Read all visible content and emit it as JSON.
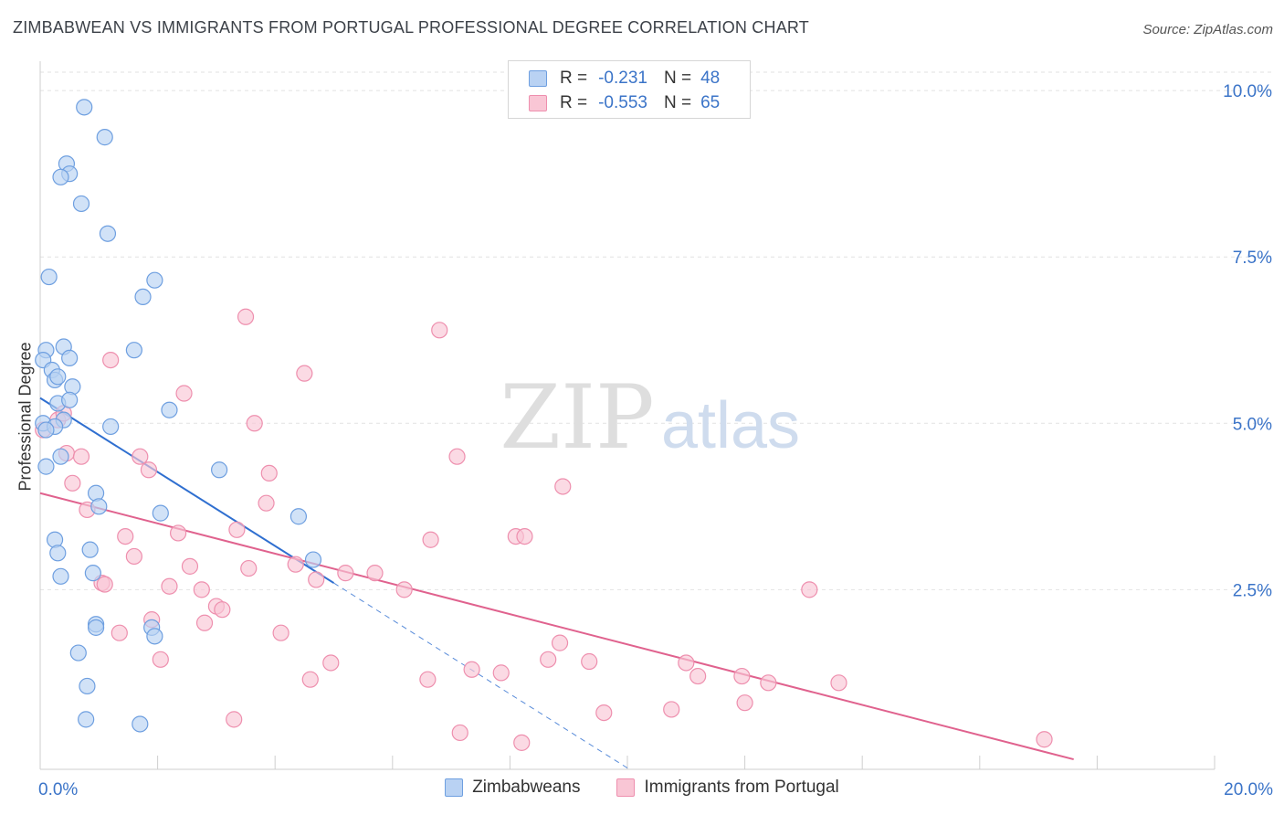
{
  "title": "ZIMBABWEAN VS IMMIGRANTS FROM PORTUGAL PROFESSIONAL DEGREE CORRELATION CHART",
  "source": "Source: ZipAtlas.com",
  "watermark": {
    "zip": "ZIP",
    "atlas": "atlas"
  },
  "legend": {
    "rows": [
      {
        "r_label": "R =",
        "r_value": "-0.231",
        "n_label": "N =",
        "n_value": "48",
        "fill": "#b9d2f3",
        "stroke": "#6e9fe0"
      },
      {
        "r_label": "R =",
        "r_value": "-0.553",
        "n_label": "N =",
        "n_value": "65",
        "fill": "#f9c6d5",
        "stroke": "#ee8fae"
      }
    ]
  },
  "bottom_legend": [
    {
      "label": "Zimbabweans",
      "fill": "#b9d2f3",
      "stroke": "#6e9fe0"
    },
    {
      "label": "Immigrants from Portugal",
      "fill": "#f9c6d5",
      "stroke": "#ee8fae"
    }
  ],
  "chart_data": {
    "type": "scatter",
    "title": "ZIMBABWEAN VS IMMIGRANTS FROM PORTUGAL PROFESSIONAL DEGREE CORRELATION CHART",
    "xlabel": "",
    "ylabel": "Professional Degree",
    "xlim": [
      0,
      20
    ],
    "ylim": [
      -0.2,
      10.4
    ],
    "x_tick_labels": [
      {
        "value": 0,
        "label": "0.0%"
      },
      {
        "value": 20,
        "label": "20.0%"
      }
    ],
    "y_tick_labels": [
      {
        "value": 2.5,
        "label": "2.5%"
      },
      {
        "value": 5.0,
        "label": "5.0%"
      },
      {
        "value": 7.5,
        "label": "7.5%"
      },
      {
        "value": 10.0,
        "label": "10.0%"
      }
    ],
    "x_minor_ticks": [
      0,
      2,
      4,
      6,
      8,
      10,
      12,
      14,
      16,
      18,
      20
    ],
    "grid": true,
    "series": [
      {
        "name": "Zimbabweans",
        "color": "#6e9fe0",
        "fill": "#b9d2f3",
        "trend_line_color": "#2f6fd0",
        "trend": {
          "x0": 0,
          "y0": 5.38,
          "x1": 5.0,
          "y1": 2.6,
          "dash_x_end": 10.0
        },
        "points": [
          {
            "x": 0.75,
            "y": 9.75
          },
          {
            "x": 1.1,
            "y": 9.3
          },
          {
            "x": 0.45,
            "y": 8.9
          },
          {
            "x": 0.5,
            "y": 8.75
          },
          {
            "x": 0.35,
            "y": 8.7
          },
          {
            "x": 0.7,
            "y": 8.3
          },
          {
            "x": 1.15,
            "y": 7.85
          },
          {
            "x": 0.15,
            "y": 7.2
          },
          {
            "x": 1.95,
            "y": 7.15
          },
          {
            "x": 1.75,
            "y": 6.9
          },
          {
            "x": 0.1,
            "y": 6.1
          },
          {
            "x": 0.4,
            "y": 6.15
          },
          {
            "x": 1.6,
            "y": 6.1
          },
          {
            "x": 0.05,
            "y": 5.95
          },
          {
            "x": 0.5,
            "y": 5.98
          },
          {
            "x": 0.2,
            "y": 5.8
          },
          {
            "x": 0.25,
            "y": 5.65
          },
          {
            "x": 0.3,
            "y": 5.7
          },
          {
            "x": 0.55,
            "y": 5.55
          },
          {
            "x": 0.3,
            "y": 5.3
          },
          {
            "x": 0.5,
            "y": 5.35
          },
          {
            "x": 2.2,
            "y": 5.2
          },
          {
            "x": 0.4,
            "y": 5.05
          },
          {
            "x": 0.05,
            "y": 5.0
          },
          {
            "x": 0.25,
            "y": 4.95
          },
          {
            "x": 0.1,
            "y": 4.9
          },
          {
            "x": 1.2,
            "y": 4.95
          },
          {
            "x": 0.35,
            "y": 4.5
          },
          {
            "x": 0.1,
            "y": 4.35
          },
          {
            "x": 3.05,
            "y": 4.3
          },
          {
            "x": 0.95,
            "y": 3.95
          },
          {
            "x": 1.0,
            "y": 3.75
          },
          {
            "x": 2.05,
            "y": 3.65
          },
          {
            "x": 4.4,
            "y": 3.6
          },
          {
            "x": 0.25,
            "y": 3.25
          },
          {
            "x": 0.85,
            "y": 3.1
          },
          {
            "x": 0.3,
            "y": 3.05
          },
          {
            "x": 4.65,
            "y": 2.95
          },
          {
            "x": 0.35,
            "y": 2.7
          },
          {
            "x": 0.9,
            "y": 2.75
          },
          {
            "x": 0.95,
            "y": 1.98
          },
          {
            "x": 0.95,
            "y": 1.93
          },
          {
            "x": 1.9,
            "y": 1.93
          },
          {
            "x": 1.95,
            "y": 1.8
          },
          {
            "x": 0.65,
            "y": 1.55
          },
          {
            "x": 0.8,
            "y": 1.05
          },
          {
            "x": 0.78,
            "y": 0.55
          },
          {
            "x": 1.7,
            "y": 0.48
          }
        ]
      },
      {
        "name": "Immigrants from Portugal",
        "color": "#ee8fae",
        "fill": "#f9c6d5",
        "trend_line_color": "#e0628e",
        "trend": {
          "x0": 0,
          "y0": 3.95,
          "x1": 17.6,
          "y1": -0.05
        },
        "points": [
          {
            "x": 3.5,
            "y": 6.6
          },
          {
            "x": 6.8,
            "y": 6.4
          },
          {
            "x": 1.2,
            "y": 5.95
          },
          {
            "x": 4.5,
            "y": 5.75
          },
          {
            "x": 2.45,
            "y": 5.45
          },
          {
            "x": 0.3,
            "y": 5.05
          },
          {
            "x": 0.4,
            "y": 5.15
          },
          {
            "x": 3.65,
            "y": 5.0
          },
          {
            "x": 0.05,
            "y": 4.9
          },
          {
            "x": 0.45,
            "y": 4.55
          },
          {
            "x": 0.7,
            "y": 4.5
          },
          {
            "x": 1.7,
            "y": 4.5
          },
          {
            "x": 7.1,
            "y": 4.5
          },
          {
            "x": 1.85,
            "y": 4.3
          },
          {
            "x": 3.9,
            "y": 4.25
          },
          {
            "x": 0.55,
            "y": 4.1
          },
          {
            "x": 8.9,
            "y": 4.05
          },
          {
            "x": 3.85,
            "y": 3.8
          },
          {
            "x": 0.8,
            "y": 3.7
          },
          {
            "x": 3.35,
            "y": 3.4
          },
          {
            "x": 2.35,
            "y": 3.35
          },
          {
            "x": 1.45,
            "y": 3.3
          },
          {
            "x": 8.1,
            "y": 3.3
          },
          {
            "x": 8.25,
            "y": 3.3
          },
          {
            "x": 6.65,
            "y": 3.25
          },
          {
            "x": 1.6,
            "y": 3.0
          },
          {
            "x": 2.55,
            "y": 2.85
          },
          {
            "x": 3.55,
            "y": 2.82
          },
          {
            "x": 4.35,
            "y": 2.88
          },
          {
            "x": 5.2,
            "y": 2.75
          },
          {
            "x": 5.7,
            "y": 2.75
          },
          {
            "x": 4.7,
            "y": 2.65
          },
          {
            "x": 1.05,
            "y": 2.6
          },
          {
            "x": 1.1,
            "y": 2.58
          },
          {
            "x": 2.2,
            "y": 2.55
          },
          {
            "x": 2.75,
            "y": 2.5
          },
          {
            "x": 6.2,
            "y": 2.5
          },
          {
            "x": 13.1,
            "y": 2.5
          },
          {
            "x": 3.0,
            "y": 2.25
          },
          {
            "x": 3.1,
            "y": 2.2
          },
          {
            "x": 1.9,
            "y": 2.05
          },
          {
            "x": 2.8,
            "y": 2.0
          },
          {
            "x": 1.35,
            "y": 1.85
          },
          {
            "x": 4.1,
            "y": 1.85
          },
          {
            "x": 8.85,
            "y": 1.7
          },
          {
            "x": 2.05,
            "y": 1.45
          },
          {
            "x": 4.95,
            "y": 1.4
          },
          {
            "x": 9.35,
            "y": 1.42
          },
          {
            "x": 8.65,
            "y": 1.45
          },
          {
            "x": 11.0,
            "y": 1.4
          },
          {
            "x": 7.35,
            "y": 1.3
          },
          {
            "x": 7.85,
            "y": 1.25
          },
          {
            "x": 11.2,
            "y": 1.2
          },
          {
            "x": 11.95,
            "y": 1.2
          },
          {
            "x": 4.6,
            "y": 1.15
          },
          {
            "x": 6.6,
            "y": 1.15
          },
          {
            "x": 12.4,
            "y": 1.1
          },
          {
            "x": 13.6,
            "y": 1.1
          },
          {
            "x": 12.0,
            "y": 0.8
          },
          {
            "x": 10.75,
            "y": 0.7
          },
          {
            "x": 9.6,
            "y": 0.65
          },
          {
            "x": 3.3,
            "y": 0.55
          },
          {
            "x": 7.15,
            "y": 0.35
          },
          {
            "x": 8.2,
            "y": 0.2
          },
          {
            "x": 17.1,
            "y": 0.25
          }
        ]
      }
    ]
  }
}
